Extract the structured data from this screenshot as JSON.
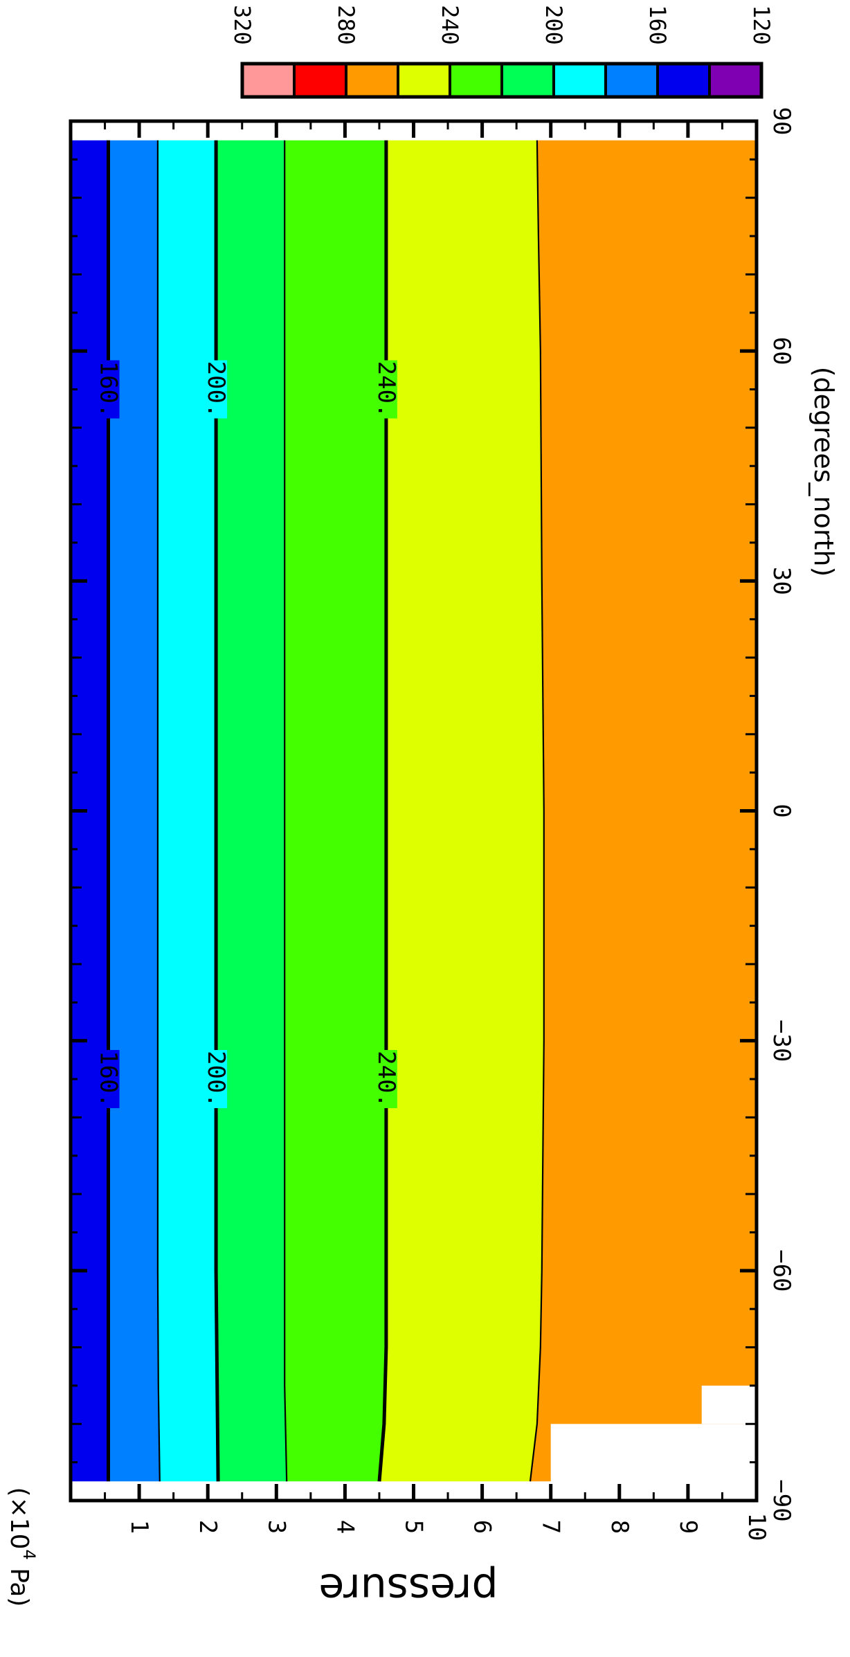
{
  "chart_data": {
    "type": "heatmap",
    "title": "",
    "xlabel": "(degrees_north)",
    "ylabel": "pressure",
    "yunit_prefix": "(×10",
    "yunit_exp": "4",
    "yunit_suffix": " Pa)",
    "xlim": [
      -90,
      90
    ],
    "ylim": [
      10,
      0
    ],
    "x_ticks": [
      -90,
      -60,
      -30,
      0,
      30,
      60,
      90
    ],
    "x_tick_labels": [
      "−90",
      "−60",
      "−30",
      "0",
      "30",
      "60",
      "90"
    ],
    "y_ticks": [
      1,
      2,
      3,
      4,
      5,
      6,
      7,
      8,
      9,
      10
    ],
    "y_tick_labels": [
      "1",
      "2",
      "3",
      "4",
      "5",
      "6",
      "7",
      "8",
      "9",
      "10"
    ],
    "data_x_range": [
      -87.5,
      87.5
    ],
    "colorbar": {
      "placement": "top-right",
      "levels": [
        120,
        140,
        160,
        180,
        200,
        220,
        240,
        260,
        280,
        300,
        320
      ],
      "tick_labels": [
        "120",
        "160",
        "200",
        "240",
        "280",
        "320"
      ],
      "colors": [
        "#7f00b2",
        "#0000ee",
        "#0080ff",
        "#00ffff",
        "#00ff55",
        "#44ff00",
        "#ddff00",
        "#ff9a00",
        "#ff0000",
        "#ff9999"
      ]
    },
    "bands": [
      {
        "range": [
          140,
          160
        ],
        "color": "#0000ee"
      },
      {
        "range": [
          160,
          180
        ],
        "color": "#0080ff"
      },
      {
        "range": [
          180,
          200
        ],
        "color": "#00ffff"
      },
      {
        "range": [
          200,
          220
        ],
        "color": "#00ff55"
      },
      {
        "range": [
          220,
          240
        ],
        "color": "#44ff00"
      },
      {
        "range": [
          240,
          260
        ],
        "color": "#ddff00"
      },
      {
        "range": [
          260,
          280
        ],
        "color": "#ff9a00"
      }
    ],
    "contours": [
      {
        "level": 160,
        "label": "160.",
        "labeled": true,
        "label_x": [
          -35,
          55
        ],
        "points": [
          [
            -87.5,
            0.55
          ],
          [
            -60,
            0.55
          ],
          [
            -30,
            0.55
          ],
          [
            0,
            0.55
          ],
          [
            30,
            0.55
          ],
          [
            60,
            0.55
          ],
          [
            87.5,
            0.55
          ]
        ]
      },
      {
        "level": 180,
        "labeled": false,
        "points": [
          [
            -87.5,
            1.3
          ],
          [
            -75,
            1.28
          ],
          [
            -60,
            1.27
          ],
          [
            -30,
            1.27
          ],
          [
            0,
            1.27
          ],
          [
            30,
            1.27
          ],
          [
            60,
            1.27
          ],
          [
            87.5,
            1.27
          ]
        ]
      },
      {
        "level": 200,
        "label": "200.",
        "labeled": true,
        "label_x": [
          -35,
          55
        ],
        "points": [
          [
            -87.5,
            2.15
          ],
          [
            -60,
            2.12
          ],
          [
            -30,
            2.12
          ],
          [
            0,
            2.12
          ],
          [
            30,
            2.12
          ],
          [
            60,
            2.12
          ],
          [
            87.5,
            2.12
          ]
        ]
      },
      {
        "level": 220,
        "labeled": false,
        "points": [
          [
            -87.5,
            3.15
          ],
          [
            -75,
            3.12
          ],
          [
            -60,
            3.12
          ],
          [
            -30,
            3.12
          ],
          [
            0,
            3.12
          ],
          [
            30,
            3.12
          ],
          [
            60,
            3.12
          ],
          [
            87.5,
            3.12
          ]
        ]
      },
      {
        "level": 240,
        "label": "240.",
        "labeled": true,
        "label_x": [
          -35,
          55
        ],
        "points": [
          [
            -87.5,
            4.5
          ],
          [
            -80,
            4.57
          ],
          [
            -70,
            4.6
          ],
          [
            -60,
            4.6
          ],
          [
            -30,
            4.6
          ],
          [
            0,
            4.6
          ],
          [
            30,
            4.6
          ],
          [
            60,
            4.6
          ],
          [
            87.5,
            4.6
          ]
        ]
      },
      {
        "level": 260,
        "labeled": false,
        "points": [
          [
            -87.5,
            6.7
          ],
          [
            -80,
            6.8
          ],
          [
            -70,
            6.85
          ],
          [
            -60,
            6.87
          ],
          [
            -30,
            6.9
          ],
          [
            0,
            6.9
          ],
          [
            30,
            6.87
          ],
          [
            60,
            6.85
          ],
          [
            75,
            6.82
          ],
          [
            87.5,
            6.8
          ]
        ]
      }
    ],
    "missing_regions": [
      {
        "x": [
          -90,
          -80
        ],
        "y": [
          7.0,
          10
        ]
      },
      {
        "x": [
          -80,
          -75
        ],
        "y": [
          9.2,
          10
        ]
      }
    ]
  }
}
